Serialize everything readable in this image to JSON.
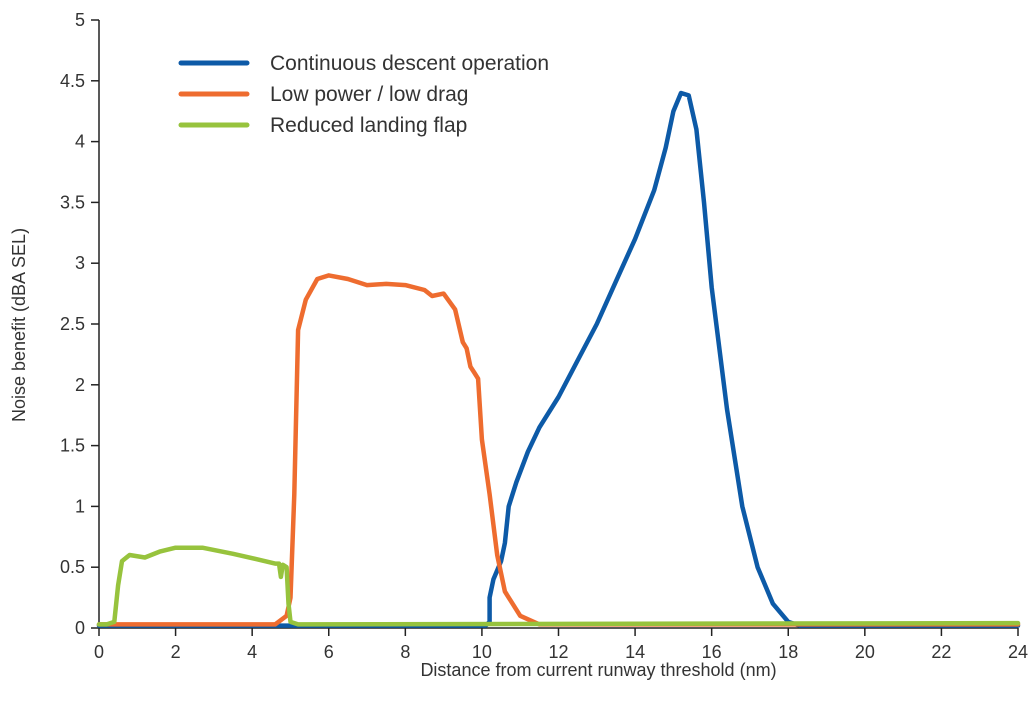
{
  "chart_data": {
    "type": "line",
    "title": "",
    "xlabel": "Distance from current runway threshold (nm)",
    "ylabel": "Noise benefit (dBA SEL)",
    "xlim": [
      0,
      24
    ],
    "ylim": [
      0,
      5
    ],
    "xticks": [
      "0",
      "2",
      "4",
      "6",
      "8",
      "10",
      "12",
      "14",
      "16",
      "18",
      "20",
      "22",
      "24"
    ],
    "yticks": [
      "0",
      "0.5",
      "1",
      "1.5",
      "2",
      "2.5",
      "3",
      "3.5",
      "4",
      "4.5",
      "5"
    ],
    "grid": false,
    "legend_position": "top-left",
    "series": [
      {
        "name": "Continuous descent operation",
        "color": "#0d5aa7",
        "points": [
          [
            0,
            0.02
          ],
          [
            4,
            0.02
          ],
          [
            10.1,
            0.02
          ],
          [
            10.2,
            0.05
          ],
          [
            10.2,
            0.25
          ],
          [
            10.3,
            0.4
          ],
          [
            10.5,
            0.55
          ],
          [
            10.6,
            0.7
          ],
          [
            10.7,
            1.0
          ],
          [
            10.9,
            1.2
          ],
          [
            11.2,
            1.45
          ],
          [
            11.5,
            1.65
          ],
          [
            12,
            1.9
          ],
          [
            12.5,
            2.2
          ],
          [
            13,
            2.5
          ],
          [
            13.5,
            2.85
          ],
          [
            14,
            3.2
          ],
          [
            14.5,
            3.6
          ],
          [
            14.8,
            3.95
          ],
          [
            15.0,
            4.25
          ],
          [
            15.2,
            4.4
          ],
          [
            15.4,
            4.38
          ],
          [
            15.6,
            4.1
          ],
          [
            15.8,
            3.5
          ],
          [
            16.0,
            2.8
          ],
          [
            16.4,
            1.8
          ],
          [
            16.8,
            1.0
          ],
          [
            17.2,
            0.5
          ],
          [
            17.6,
            0.2
          ],
          [
            18,
            0.05
          ],
          [
            18.3,
            0.02
          ],
          [
            24,
            0.02
          ]
        ]
      },
      {
        "name": "Low power / low drag",
        "color": "#ee6c2f",
        "points": [
          [
            0,
            0.03
          ],
          [
            4.6,
            0.03
          ],
          [
            4.9,
            0.1
          ],
          [
            5.0,
            0.25
          ],
          [
            5.1,
            1.1
          ],
          [
            5.2,
            2.45
          ],
          [
            5.4,
            2.7
          ],
          [
            5.7,
            2.87
          ],
          [
            6,
            2.9
          ],
          [
            6.5,
            2.87
          ],
          [
            7,
            2.82
          ],
          [
            7.5,
            2.83
          ],
          [
            8,
            2.82
          ],
          [
            8.5,
            2.78
          ],
          [
            8.7,
            2.73
          ],
          [
            9.0,
            2.75
          ],
          [
            9.3,
            2.62
          ],
          [
            9.5,
            2.35
          ],
          [
            9.6,
            2.3
          ],
          [
            9.7,
            2.15
          ],
          [
            9.8,
            2.1
          ],
          [
            9.9,
            2.05
          ],
          [
            10.0,
            1.55
          ],
          [
            10.2,
            1.1
          ],
          [
            10.4,
            0.6
          ],
          [
            10.6,
            0.3
          ],
          [
            11.0,
            0.1
          ],
          [
            11.5,
            0.03
          ],
          [
            24,
            0.03
          ]
        ]
      },
      {
        "name": "Reduced landing flap",
        "color": "#97c33d",
        "points": [
          [
            0,
            0.03
          ],
          [
            0.2,
            0.03
          ],
          [
            0.4,
            0.05
          ],
          [
            0.5,
            0.35
          ],
          [
            0.6,
            0.55
          ],
          [
            0.8,
            0.6
          ],
          [
            1.2,
            0.58
          ],
          [
            1.6,
            0.63
          ],
          [
            2,
            0.66
          ],
          [
            2.7,
            0.66
          ],
          [
            3.5,
            0.61
          ],
          [
            4.2,
            0.56
          ],
          [
            4.6,
            0.53
          ],
          [
            4.7,
            0.53
          ],
          [
            4.75,
            0.42
          ],
          [
            4.8,
            0.52
          ],
          [
            4.9,
            0.5
          ],
          [
            4.95,
            0.2
          ],
          [
            5.0,
            0.05
          ],
          [
            5.2,
            0.03
          ],
          [
            24,
            0.04
          ]
        ]
      }
    ]
  }
}
